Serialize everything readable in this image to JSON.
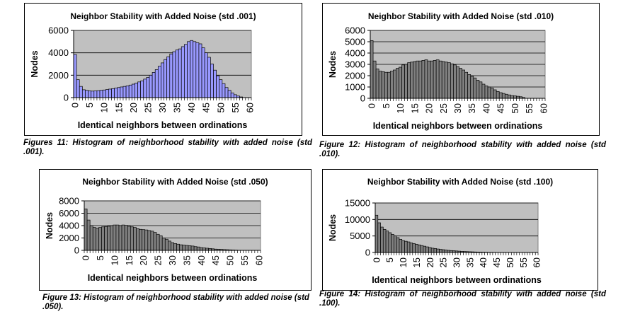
{
  "charts": [
    {
      "caption": "Figures 11: Histogram of neighborhood stability with added noise (std .001).",
      "chart_data": {
        "type": "bar",
        "title": "Neighbor Stability with Added Noise (std .001)",
        "xlabel": "Identical neighbors between ordinations",
        "ylabel": "Nodes",
        "ylim": [
          0,
          6000
        ],
        "yticks": [
          "0",
          "2000",
          "4000",
          "6000"
        ],
        "xticks": [
          "0",
          "5",
          "10",
          "15",
          "20",
          "25",
          "30",
          "35",
          "40",
          "45",
          "50",
          "55",
          "60"
        ],
        "grid": true,
        "bar_color": "#9999ff",
        "plot_bg": "#c0c0c0",
        "values": [
          3850,
          1600,
          1000,
          700,
          650,
          600,
          580,
          600,
          620,
          650,
          680,
          720,
          760,
          800,
          850,
          900,
          950,
          1000,
          1050,
          1120,
          1200,
          1300,
          1400,
          1500,
          1650,
          1800,
          2000,
          2250,
          2500,
          2800,
          3100,
          3400,
          3650,
          3900,
          4100,
          4250,
          4350,
          4550,
          4750,
          5000,
          5100,
          5000,
          4900,
          4800,
          4450,
          4000,
          3600,
          3000,
          2450,
          1950,
          1600,
          1250,
          900,
          650,
          420,
          260,
          140,
          60,
          0,
          0
        ]
      }
    },
    {
      "caption": "Figure 12: Histogram of neighborhood stability with added noise (std .010).",
      "chart_data": {
        "type": "bar",
        "title": "Neighbor Stability with Added Noise (std .010)",
        "xlabel": "Identical neighbors between ordinations",
        "ylabel": "Nodes",
        "ylim": [
          0,
          6000
        ],
        "yticks": [
          "0",
          "1000",
          "2000",
          "3000",
          "4000",
          "5000",
          "6000"
        ],
        "xticks": [
          "0",
          "5",
          "10",
          "15",
          "20",
          "25",
          "30",
          "35",
          "40",
          "45",
          "50",
          "55",
          "60"
        ],
        "grid": true,
        "bar_color": "#808080",
        "plot_bg": "#c0c0c0",
        "values": [
          5100,
          3300,
          2600,
          2400,
          2350,
          2300,
          2300,
          2400,
          2500,
          2650,
          2750,
          2950,
          3000,
          3150,
          3200,
          3250,
          3300,
          3300,
          3350,
          3400,
          3300,
          3300,
          3350,
          3400,
          3300,
          3250,
          3200,
          3150,
          3050,
          2950,
          2800,
          2650,
          2500,
          2300,
          2100,
          1950,
          1800,
          1600,
          1450,
          1250,
          1100,
          1000,
          900,
          750,
          600,
          500,
          430,
          360,
          300,
          240,
          210,
          180,
          140,
          70,
          0,
          0,
          0,
          0,
          0,
          0
        ]
      }
    },
    {
      "caption": "Figure 13: Histogram of neighborhood stability with added noise (std .050).",
      "chart_data": {
        "type": "bar",
        "title": "Neighbor Stability with Added Noise (std .050)",
        "xlabel": "Identical neighbors between ordinations",
        "ylabel": "Nodes",
        "ylim": [
          0,
          8000
        ],
        "yticks": [
          "0",
          "2000",
          "4000",
          "6000",
          "8000"
        ],
        "xticks": [
          "0",
          "5",
          "10",
          "15",
          "20",
          "25",
          "30",
          "35",
          "40",
          "45",
          "50",
          "55",
          "60"
        ],
        "grid": true,
        "bar_color": "#808080",
        "plot_bg": "#c0c0c0",
        "values": [
          6700,
          4900,
          4000,
          3700,
          3600,
          3700,
          3800,
          3850,
          3900,
          4000,
          4100,
          4100,
          4000,
          4100,
          4050,
          3900,
          3800,
          3700,
          3500,
          3400,
          3350,
          3300,
          3200,
          3100,
          2900,
          2600,
          2350,
          2000,
          1800,
          1500,
          1250,
          1100,
          1000,
          900,
          850,
          800,
          750,
          700,
          600,
          550,
          450,
          400,
          350,
          300,
          250,
          200,
          180,
          150,
          120,
          100,
          80,
          60,
          40,
          20,
          10,
          5,
          0,
          0,
          0,
          0
        ]
      }
    },
    {
      "caption": "Figure 14: Histogram of neighborhood stability with added noise (std .100).",
      "chart_data": {
        "type": "bar",
        "title": "Neighbor Stability with Added Noise (std .100)",
        "xlabel": "Identical neighbors between ordinations",
        "ylabel": "Nodes",
        "ylim": [
          0,
          15000
        ],
        "yticks": [
          "0",
          "5000",
          "10000",
          "15000"
        ],
        "xticks": [
          "0",
          "5",
          "10",
          "15",
          "20",
          "25",
          "30",
          "35",
          "40",
          "45",
          "50",
          "55",
          "60"
        ],
        "grid": true,
        "bar_color": "#808080",
        "plot_bg": "#c0c0c0",
        "values": [
          11300,
          9000,
          7700,
          7000,
          6500,
          6000,
          5500,
          5000,
          4500,
          4000,
          3600,
          3400,
          3200,
          2900,
          2700,
          2500,
          2300,
          2100,
          1900,
          1700,
          1500,
          1300,
          1200,
          1050,
          950,
          850,
          750,
          650,
          580,
          520,
          460,
          400,
          350,
          300,
          260,
          220,
          190,
          160,
          140,
          120,
          100,
          80,
          60,
          50,
          40,
          30,
          20,
          10,
          5,
          0,
          0,
          0,
          0,
          0,
          0,
          0,
          0,
          0,
          0,
          0
        ]
      }
    }
  ]
}
